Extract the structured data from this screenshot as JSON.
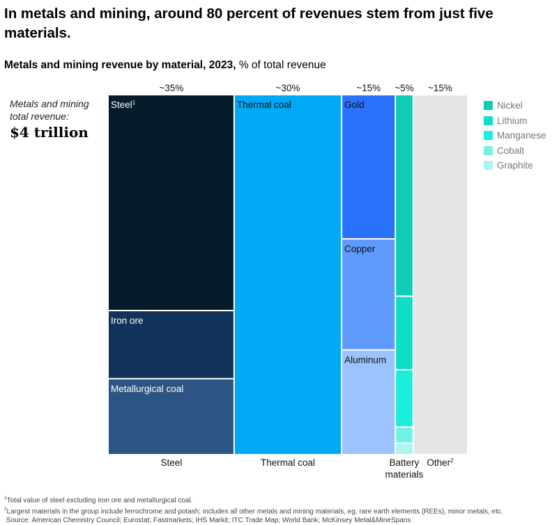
{
  "headline": "In metals and mining, around 80 percent of revenues stem from just five materials.",
  "subtitle_bold": "Metals and mining revenue by material, 2023,",
  "subtitle_rest": " % of total revenue",
  "total_label": "Metals and mining total revenue:",
  "total_value": "$4 trillion",
  "footnotes": [
    "Total value of steel excluding iron ore and metallurgical coal.",
    "Largest materials in the group include ferrochrome and potash; includes all other metals and mining materials, eg, rare earth elements (REEs), minor metals, etc.",
    "Source: American Chemistry Council; Eurostat; Fastmarkets; IHS Markit; ITC Trade Map; World Bank; McKinsey Metal&MineSpans"
  ],
  "colors": {
    "steel": "#061c2b",
    "iron_ore": "#12345a",
    "metallurgical_coal": "#2d5583",
    "thermal_coal": "#00a9f4",
    "gold": "#2a72fb",
    "copper": "#5e9bfc",
    "aluminum": "#9cc3fd",
    "nickel": "#10cbb6",
    "lithium": "#11dcc7",
    "manganese": "#1deddb",
    "cobalt": "#75f0e6",
    "graphite": "#a9f5ef",
    "other": "#e6e6e6"
  },
  "chart_data": {
    "type": "marimekko",
    "unit": "% of total revenue",
    "columns": [
      {
        "key": "steel",
        "label": "Steel",
        "top_label": "~35%",
        "share": 35,
        "segments": [
          {
            "key": "steel",
            "label": "Steel",
            "footnote": "1",
            "share_of_column": 60
          },
          {
            "key": "iron_ore",
            "label": "Iron ore",
            "share_of_column": 19
          },
          {
            "key": "metallurgical_coal",
            "label": "Metallurgical coal",
            "share_of_column": 21
          }
        ]
      },
      {
        "key": "thermal_coal",
        "label": "Thermal coal",
        "top_label": "~30%",
        "share": 30,
        "segments": [
          {
            "key": "thermal_coal",
            "label": "Thermal coal",
            "share_of_column": 100
          }
        ]
      },
      {
        "key": "base_precious",
        "label": "",
        "top_label": "~15%",
        "share": 15,
        "segments": [
          {
            "key": "gold",
            "label": "Gold",
            "share_of_column": 40
          },
          {
            "key": "copper",
            "label": "Copper",
            "share_of_column": 31
          },
          {
            "key": "aluminum",
            "label": "Aluminum",
            "share_of_column": 29
          }
        ]
      },
      {
        "key": "battery",
        "label": "Battery materials",
        "top_label": "~5%",
        "share": 5,
        "segments": [
          {
            "key": "nickel",
            "label": "",
            "share_of_column": 56
          },
          {
            "key": "lithium",
            "label": "",
            "share_of_column": 20.5
          },
          {
            "key": "manganese",
            "label": "",
            "share_of_column": 16
          },
          {
            "key": "cobalt",
            "label": "",
            "share_of_column": 4.5
          },
          {
            "key": "graphite",
            "label": "",
            "share_of_column": 3
          }
        ]
      },
      {
        "key": "other",
        "label": "Other",
        "footnote": "2",
        "top_label": "~15%",
        "share": 15,
        "segments": [
          {
            "key": "other",
            "label": "",
            "share_of_column": 100
          }
        ]
      }
    ],
    "legend": [
      {
        "key": "nickel",
        "label": "Nickel"
      },
      {
        "key": "lithium",
        "label": "Lithium"
      },
      {
        "key": "manganese",
        "label": "Manganese"
      },
      {
        "key": "cobalt",
        "label": "Cobalt"
      },
      {
        "key": "graphite",
        "label": "Graphite"
      }
    ]
  }
}
